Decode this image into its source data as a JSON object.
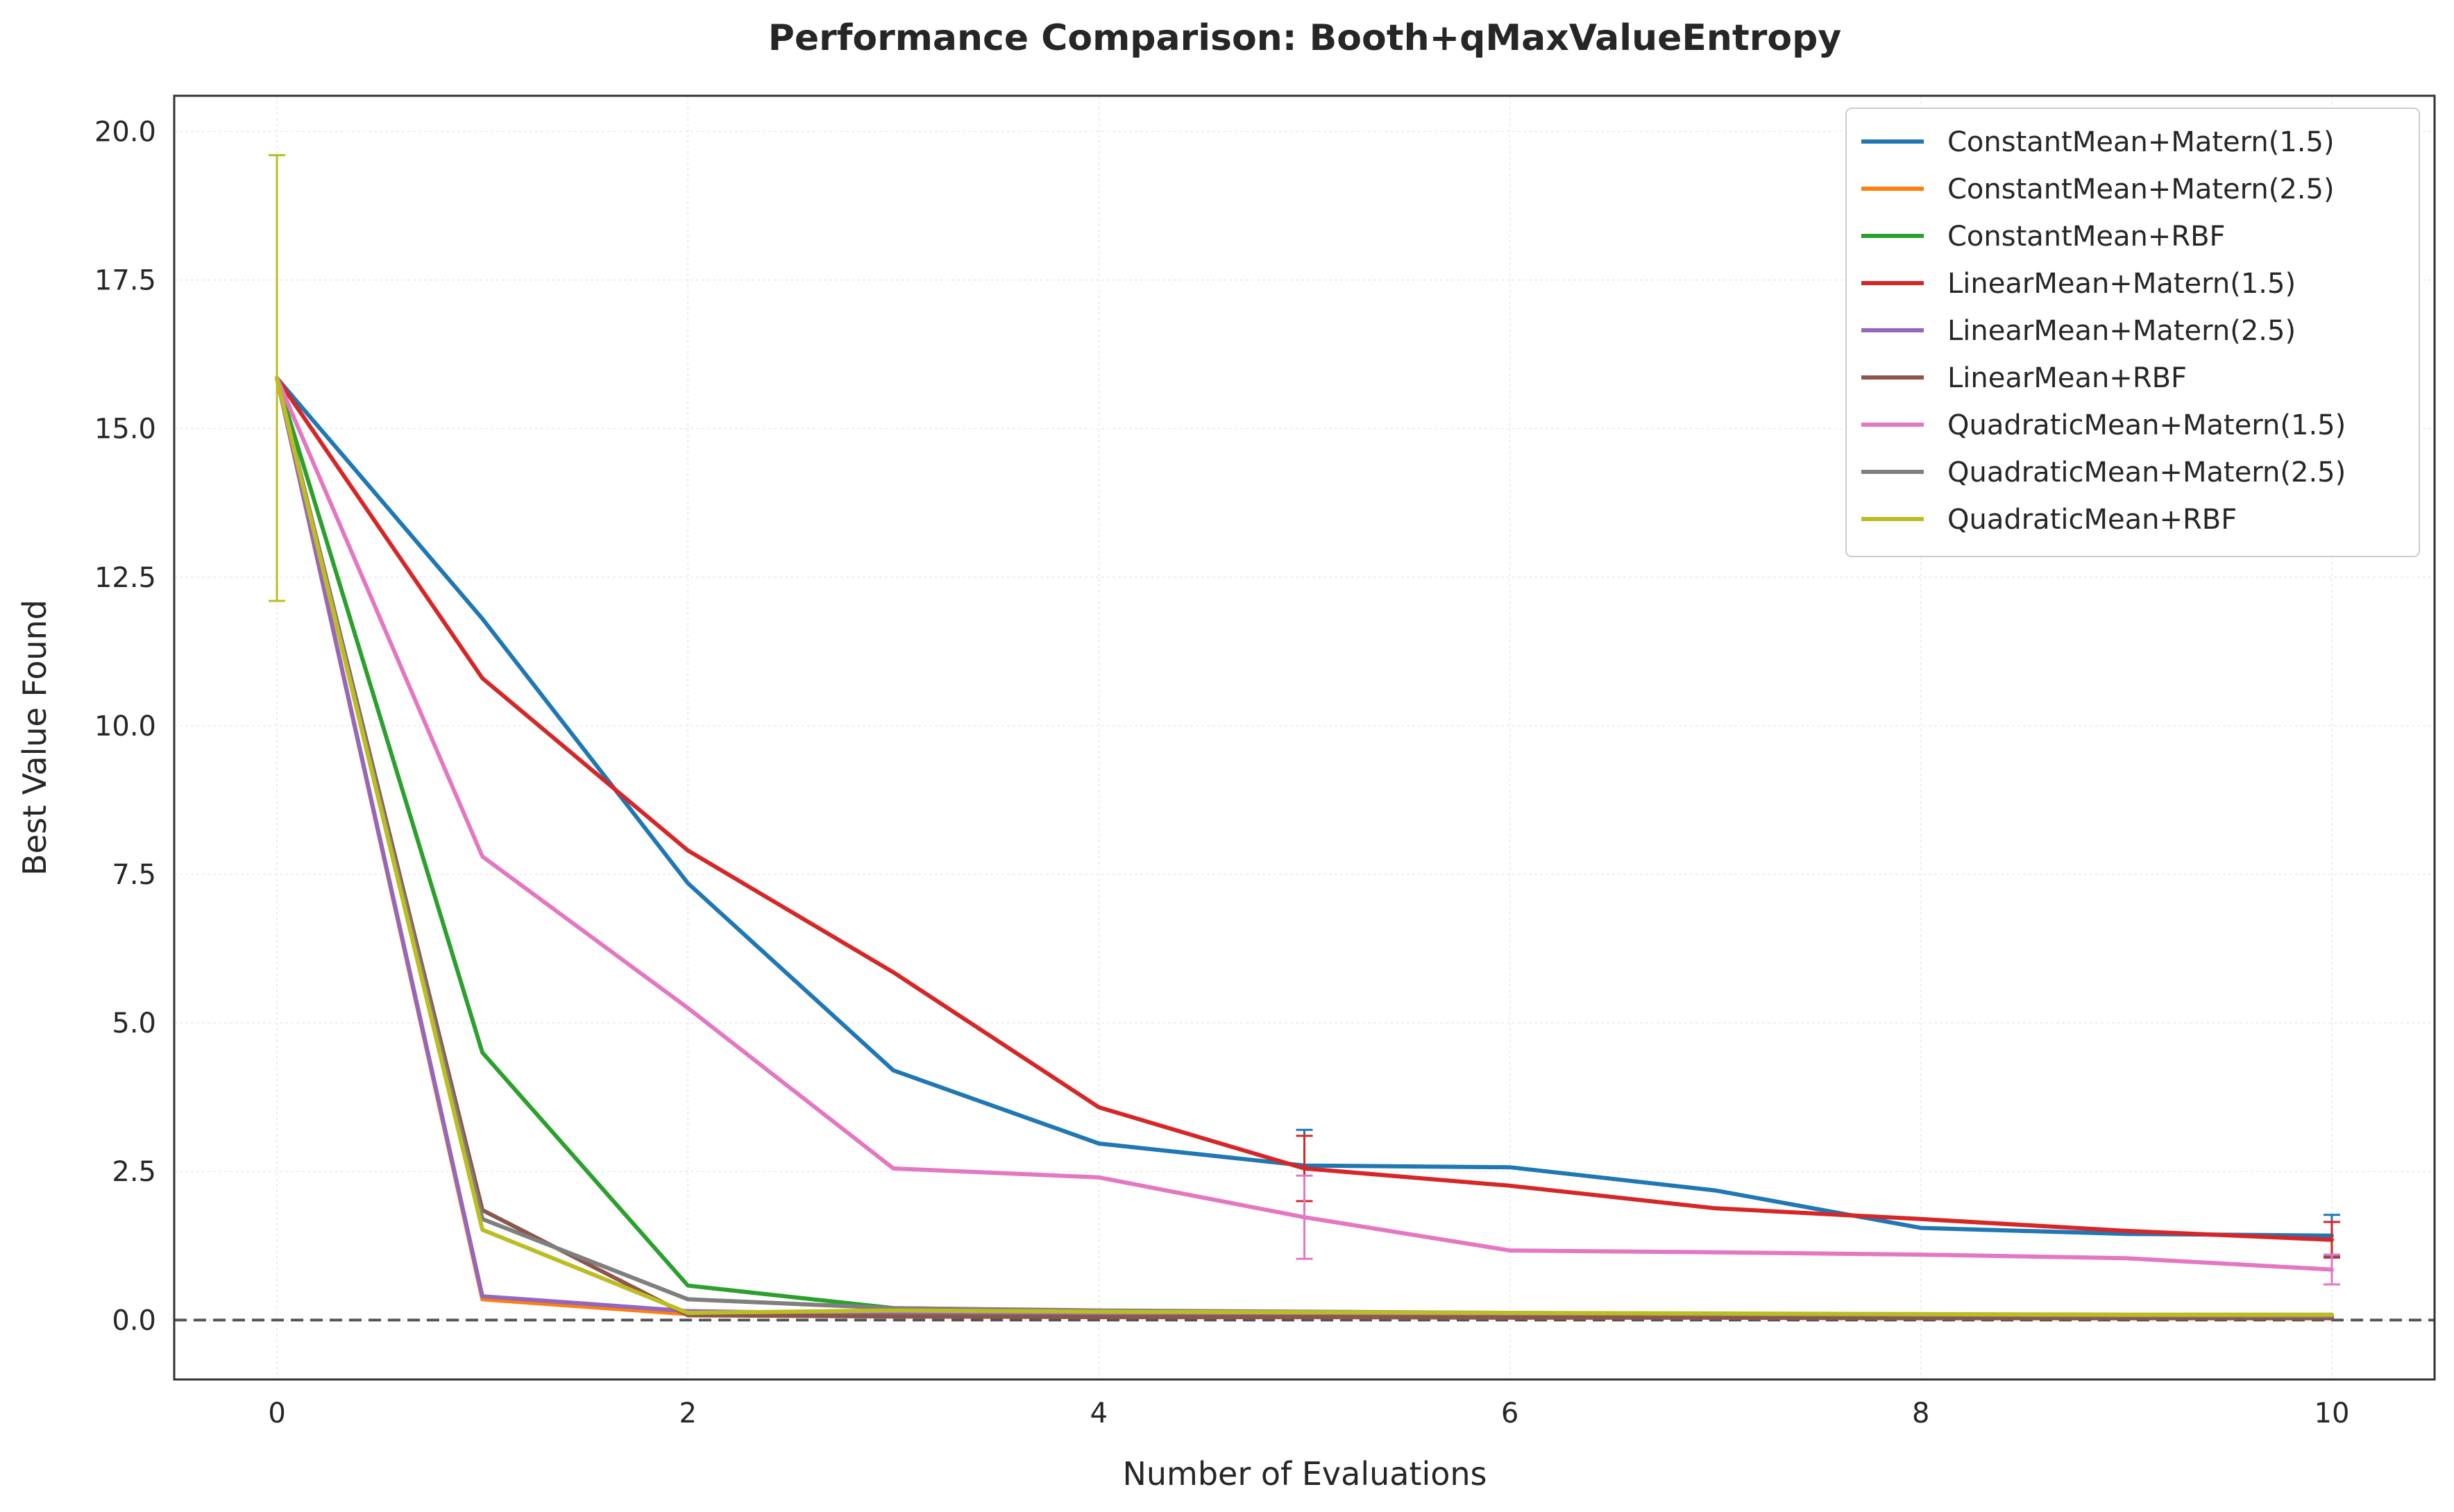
{
  "chart_data": {
    "type": "line",
    "title": "Performance Comparison: Booth+qMaxValueEntropy",
    "xlabel": "Number of Evaluations",
    "ylabel": "Best Value Found",
    "xlim": [
      -0.5,
      10.5
    ],
    "ylim": [
      -1.0,
      20.6
    ],
    "xticks": [
      0,
      2,
      4,
      6,
      8,
      10
    ],
    "yticks": [
      0.0,
      2.5,
      5.0,
      7.5,
      10.0,
      12.5,
      15.0,
      17.5,
      20.0
    ],
    "ytick_labels": [
      "0.0",
      "2.5",
      "5.0",
      "7.5",
      "10.0",
      "12.5",
      "15.0",
      "17.5",
      "20.0"
    ],
    "grid": true,
    "legend_position": "top-right",
    "reference_line": {
      "y": 0.0,
      "style": "dashed",
      "color": "#555555"
    },
    "x": [
      0,
      1,
      2,
      3,
      4,
      5,
      6,
      7,
      8,
      9,
      10
    ],
    "series": [
      {
        "name": "ConstantMean+Matern(1.5)",
        "color": "#1f77b4",
        "values": [
          15.85,
          11.8,
          7.35,
          4.2,
          2.97,
          2.6,
          2.57,
          2.18,
          1.55,
          1.45,
          1.42
        ],
        "errorbars": [
          {
            "x": 5,
            "y": 2.6,
            "err": 0.6
          },
          {
            "x": 10,
            "y": 1.42,
            "err": 0.35
          }
        ]
      },
      {
        "name": "ConstantMean+Matern(2.5)",
        "color": "#ff7f0e",
        "values": [
          15.85,
          0.35,
          0.1,
          0.08,
          0.07,
          0.06,
          0.05,
          0.05,
          0.04,
          0.04,
          0.04
        ],
        "errorbars": []
      },
      {
        "name": "ConstantMean+RBF",
        "color": "#2ca02c",
        "values": [
          15.85,
          4.5,
          0.58,
          0.2,
          0.15,
          0.12,
          0.1,
          0.09,
          0.08,
          0.07,
          0.06
        ],
        "errorbars": []
      },
      {
        "name": "LinearMean+Matern(1.5)",
        "color": "#d62728",
        "values": [
          15.85,
          10.8,
          7.9,
          5.85,
          3.58,
          2.55,
          2.26,
          1.88,
          1.7,
          1.5,
          1.35
        ],
        "errorbars": [
          {
            "x": 5,
            "y": 2.55,
            "err": 0.55
          },
          {
            "x": 10,
            "y": 1.35,
            "err": 0.3
          }
        ]
      },
      {
        "name": "LinearMean+Matern(2.5)",
        "color": "#9467bd",
        "values": [
          15.85,
          0.4,
          0.15,
          0.1,
          0.08,
          0.07,
          0.06,
          0.05,
          0.05,
          0.04,
          0.04
        ],
        "errorbars": []
      },
      {
        "name": "LinearMean+RBF",
        "color": "#8c564b",
        "values": [
          15.85,
          1.85,
          0.08,
          0.06,
          0.05,
          0.05,
          0.04,
          0.04,
          0.03,
          0.03,
          0.03
        ],
        "errorbars": []
      },
      {
        "name": "QuadraticMean+Matern(1.5)",
        "color": "#e377c2",
        "values": [
          15.85,
          7.8,
          5.25,
          2.55,
          2.4,
          1.73,
          1.17,
          1.14,
          1.1,
          1.04,
          0.85
        ],
        "errorbars": [
          {
            "x": 5,
            "y": 1.73,
            "err": 0.7
          },
          {
            "x": 10,
            "y": 0.85,
            "err": 0.25
          }
        ]
      },
      {
        "name": "QuadraticMean+Matern(2.5)",
        "color": "#7f7f7f",
        "values": [
          15.85,
          1.7,
          0.35,
          0.2,
          0.16,
          0.14,
          0.12,
          0.1,
          0.09,
          0.08,
          0.07
        ],
        "errorbars": []
      },
      {
        "name": "QuadraticMean+RBF",
        "color": "#bcbd22",
        "values": [
          15.85,
          1.52,
          0.12,
          0.16,
          0.14,
          0.13,
          0.12,
          0.11,
          0.1,
          0.09,
          0.09
        ],
        "errorbars": [
          {
            "x": 0,
            "y": 15.85,
            "err": 3.75
          }
        ]
      }
    ]
  }
}
